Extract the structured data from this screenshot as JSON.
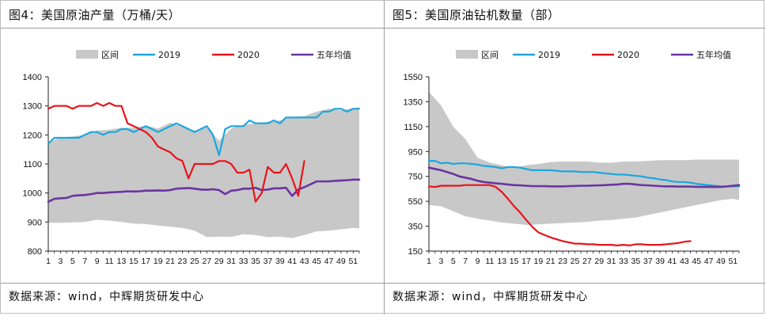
{
  "panels": [
    {
      "title": "图4：美国原油产量（万桶/天）",
      "source": "数据来源：wind，中辉期货研发中心"
    },
    {
      "title": "图5：美国原油钻机数量（部）",
      "source": "数据来源：wind，中辉期货研发中心"
    }
  ],
  "chart_data": [
    {
      "type": "area",
      "title": "图4：美国原油产量（万桶/天）",
      "xlabel": "",
      "ylabel": "",
      "ylim": [
        800,
        1400
      ],
      "yticks": [
        800,
        900,
        1000,
        1100,
        1200,
        1300,
        1400
      ],
      "xrange": [
        1,
        52
      ],
      "xtick_labels": [
        "1",
        "3",
        "5",
        "7",
        "9",
        "11",
        "13",
        "15",
        "17",
        "19",
        "21",
        "23",
        "25",
        "27",
        "29",
        "31",
        "33",
        "35",
        "37",
        "39",
        "41",
        "43",
        "45",
        "47",
        "49",
        "51"
      ],
      "legend": [
        "区间",
        "2019",
        "2020",
        "五年均值"
      ],
      "legend_position": "top",
      "grid": false,
      "colors": {
        "range": "#c8c8c8",
        "y2019": "#1aa7e0",
        "y2020": "#e8141b",
        "avg": "#6a35a0"
      },
      "band": {
        "name": "区间",
        "x": [
          1,
          3,
          5,
          7,
          9,
          11,
          13,
          15,
          17,
          19,
          21,
          23,
          25,
          27,
          29,
          31,
          33,
          35,
          37,
          39,
          41,
          43,
          45,
          47,
          49,
          51,
          52
        ],
        "low": [
          898,
          897,
          899,
          900,
          908,
          905,
          900,
          895,
          893,
          888,
          884,
          880,
          870,
          848,
          850,
          849,
          858,
          855,
          848,
          850,
          845,
          855,
          868,
          870,
          875,
          880,
          878
        ],
        "high": [
          1175,
          1190,
          1195,
          1200,
          1215,
          1218,
          1225,
          1225,
          1232,
          1222,
          1242,
          1228,
          1215,
          1225,
          1180,
          1222,
          1235,
          1240,
          1245,
          1250,
          1262,
          1265,
          1280,
          1290,
          1285,
          1292,
          1295
        ]
      },
      "series": [
        {
          "name": "2019",
          "x": [
            1,
            2,
            3,
            4,
            5,
            6,
            7,
            8,
            9,
            10,
            11,
            12,
            13,
            14,
            15,
            16,
            17,
            18,
            19,
            20,
            21,
            22,
            23,
            24,
            25,
            26,
            27,
            28,
            29,
            30,
            31,
            32,
            33,
            34,
            35,
            36,
            37,
            38,
            39,
            40,
            41,
            42,
            43,
            44,
            45,
            46,
            47,
            48,
            49,
            50,
            51,
            52
          ],
          "values": [
            1170,
            1190,
            1190,
            1190,
            1190,
            1190,
            1200,
            1210,
            1210,
            1200,
            1210,
            1210,
            1220,
            1220,
            1210,
            1220,
            1230,
            1220,
            1210,
            1220,
            1230,
            1240,
            1230,
            1220,
            1210,
            1220,
            1230,
            1200,
            1130,
            1220,
            1230,
            1230,
            1230,
            1250,
            1240,
            1240,
            1240,
            1250,
            1240,
            1260,
            1260,
            1260,
            1260,
            1260,
            1260,
            1280,
            1280,
            1290,
            1290,
            1280,
            1290,
            1290
          ]
        },
        {
          "name": "2020",
          "x": [
            1,
            2,
            3,
            4,
            5,
            6,
            7,
            8,
            9,
            10,
            11,
            12,
            13,
            14,
            15,
            16,
            17,
            18,
            19,
            20,
            21,
            22,
            23,
            24,
            25,
            26,
            27,
            28,
            29,
            30,
            31,
            32,
            33,
            34,
            35,
            36,
            37,
            38,
            39,
            40,
            41,
            42,
            43
          ],
          "values": [
            1290,
            1300,
            1300,
            1300,
            1290,
            1300,
            1300,
            1300,
            1310,
            1300,
            1310,
            1300,
            1300,
            1240,
            1230,
            1220,
            1210,
            1190,
            1160,
            1150,
            1140,
            1120,
            1110,
            1050,
            1100,
            1100,
            1100,
            1100,
            1110,
            1110,
            1100,
            1070,
            1070,
            1080,
            970,
            1000,
            1090,
            1070,
            1070,
            1100,
            1050,
            990,
            1110
          ]
        },
        {
          "name": "五年均值",
          "x": [
            1,
            2,
            3,
            4,
            5,
            6,
            7,
            8,
            9,
            10,
            11,
            12,
            13,
            14,
            15,
            16,
            17,
            18,
            19,
            20,
            21,
            22,
            23,
            24,
            25,
            26,
            27,
            28,
            29,
            30,
            31,
            32,
            33,
            34,
            35,
            36,
            37,
            38,
            39,
            40,
            41,
            42,
            43,
            44,
            45,
            46,
            47,
            48,
            49,
            50,
            51,
            52
          ],
          "values": [
            970,
            980,
            982,
            983,
            990,
            992,
            993,
            996,
            1000,
            1000,
            1002,
            1003,
            1004,
            1006,
            1005,
            1006,
            1008,
            1008,
            1009,
            1008,
            1010,
            1015,
            1016,
            1017,
            1015,
            1012,
            1011,
            1013,
            1010,
            996,
            1008,
            1010,
            1015,
            1015,
            1018,
            1010,
            1012,
            1016,
            1016,
            1018,
            990,
            1012,
            1020,
            1030,
            1040,
            1040,
            1040,
            1042,
            1043,
            1044,
            1046,
            1046
          ]
        }
      ]
    },
    {
      "type": "area",
      "title": "图5：美国原油钻机数量（部）",
      "xlabel": "",
      "ylabel": "",
      "ylim": [
        150,
        1550
      ],
      "yticks": [
        150,
        350,
        550,
        750,
        950,
        1150,
        1350,
        1550
      ],
      "xrange": [
        1,
        52
      ],
      "xtick_labels": [
        "1",
        "3",
        "5",
        "7",
        "9",
        "11",
        "13",
        "15",
        "17",
        "19",
        "21",
        "23",
        "25",
        "27",
        "29",
        "31",
        "33",
        "35",
        "37",
        "39",
        "41",
        "43",
        "45",
        "47",
        "49",
        "51"
      ],
      "legend": [
        "区间",
        "2019",
        "2020",
        "五年均值"
      ],
      "legend_position": "top",
      "grid": false,
      "colors": {
        "range": "#c8c8c8",
        "y2019": "#1aa7e0",
        "y2020": "#e8141b",
        "avg": "#6a35a0"
      },
      "band": {
        "name": "区间",
        "x": [
          1,
          3,
          5,
          7,
          9,
          11,
          13,
          15,
          17,
          19,
          21,
          23,
          25,
          27,
          29,
          31,
          33,
          35,
          37,
          39,
          41,
          43,
          45,
          47,
          49,
          51,
          52
        ],
        "low": [
          520,
          510,
          470,
          430,
          410,
          395,
          380,
          370,
          360,
          365,
          370,
          375,
          380,
          385,
          395,
          400,
          410,
          420,
          440,
          460,
          480,
          500,
          520,
          540,
          560,
          570,
          560
        ],
        "high": [
          1430,
          1320,
          1150,
          1050,
          900,
          860,
          840,
          820,
          840,
          850,
          865,
          870,
          870,
          870,
          860,
          860,
          870,
          870,
          875,
          880,
          880,
          880,
          885,
          885,
          885,
          885,
          885
        ]
      },
      "series": [
        {
          "name": "2019",
          "x": [
            1,
            2,
            3,
            4,
            5,
            6,
            7,
            8,
            9,
            10,
            11,
            12,
            13,
            14,
            15,
            16,
            17,
            18,
            19,
            20,
            21,
            22,
            23,
            24,
            25,
            26,
            27,
            28,
            29,
            30,
            31,
            32,
            33,
            34,
            35,
            36,
            37,
            38,
            39,
            40,
            41,
            42,
            43,
            44,
            45,
            46,
            47,
            48,
            49,
            50,
            51,
            52
          ],
          "values": [
            875,
            875,
            855,
            860,
            850,
            855,
            855,
            850,
            845,
            835,
            830,
            825,
            815,
            825,
            825,
            820,
            810,
            800,
            800,
            800,
            800,
            795,
            790,
            790,
            790,
            785,
            785,
            785,
            780,
            775,
            770,
            765,
            765,
            760,
            755,
            750,
            740,
            735,
            725,
            720,
            710,
            705,
            705,
            700,
            690,
            685,
            680,
            675,
            670,
            670,
            670,
            670
          ]
        },
        {
          "name": "2020",
          "x": [
            1,
            2,
            3,
            4,
            5,
            6,
            7,
            8,
            9,
            10,
            11,
            12,
            13,
            14,
            15,
            16,
            17,
            18,
            19,
            20,
            21,
            22,
            23,
            24,
            25,
            26,
            27,
            28,
            29,
            30,
            31,
            32,
            33,
            34,
            35,
            36,
            37,
            38,
            39,
            40,
            41,
            42,
            43,
            44
          ],
          "values": [
            670,
            665,
            675,
            675,
            675,
            675,
            680,
            680,
            680,
            680,
            680,
            665,
            625,
            570,
            510,
            460,
            400,
            345,
            300,
            280,
            260,
            245,
            230,
            220,
            210,
            210,
            205,
            205,
            200,
            200,
            200,
            195,
            200,
            195,
            205,
            205,
            200,
            200,
            200,
            205,
            210,
            215,
            225,
            230
          ]
        },
        {
          "name": "五年均值",
          "x": [
            1,
            2,
            3,
            4,
            5,
            6,
            7,
            8,
            9,
            10,
            11,
            12,
            13,
            14,
            15,
            16,
            17,
            18,
            19,
            20,
            21,
            22,
            23,
            24,
            25,
            26,
            27,
            28,
            29,
            30,
            31,
            32,
            33,
            34,
            35,
            36,
            37,
            38,
            39,
            40,
            41,
            42,
            43,
            44,
            45,
            46,
            47,
            48,
            49,
            50,
            51,
            52
          ],
          "values": [
            820,
            810,
            800,
            785,
            770,
            750,
            740,
            730,
            715,
            705,
            700,
            695,
            690,
            685,
            680,
            678,
            675,
            672,
            672,
            672,
            670,
            670,
            670,
            672,
            673,
            675,
            675,
            677,
            678,
            680,
            683,
            685,
            690,
            690,
            685,
            680,
            678,
            675,
            672,
            670,
            670,
            668,
            668,
            668,
            666,
            666,
            666,
            665,
            666,
            670,
            675,
            680
          ]
        }
      ]
    }
  ]
}
